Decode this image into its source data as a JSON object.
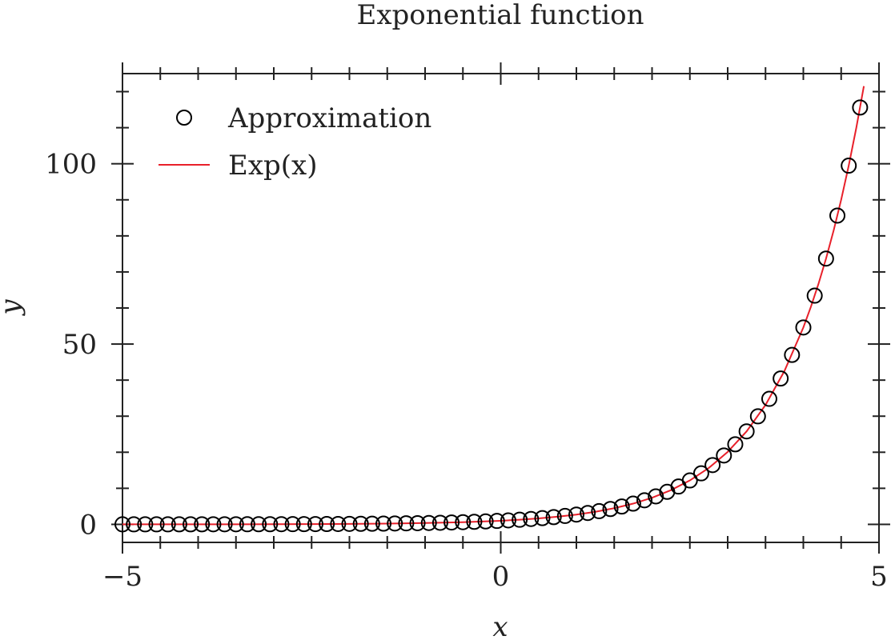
{
  "chart_data": {
    "type": "line",
    "title": "Exponential function",
    "xlabel": "x",
    "ylabel": "y",
    "xlim": [
      -5,
      5
    ],
    "ylim": [
      -5,
      125
    ],
    "xticks": [
      -5,
      0,
      5
    ],
    "xtick_labels": [
      "−5",
      "0",
      "5"
    ],
    "yticks": [
      0,
      50,
      100
    ],
    "ytick_labels": [
      "0",
      "50",
      "100"
    ],
    "grid": false,
    "legend_position": "top-left",
    "series": [
      {
        "name": "Approximation",
        "kind": "markers",
        "marker": "open-circle",
        "color": "#000000",
        "x": [
          -5.0,
          -4.85,
          -4.7,
          -4.55,
          -4.4,
          -4.25,
          -4.1,
          -3.95,
          -3.8,
          -3.65,
          -3.5,
          -3.35,
          -3.2,
          -3.05,
          -2.9,
          -2.75,
          -2.6,
          -2.45,
          -2.3,
          -2.15,
          -2.0,
          -1.85,
          -1.7,
          -1.55,
          -1.4,
          -1.25,
          -1.1,
          -0.95,
          -0.8,
          -0.65,
          -0.5,
          -0.35,
          -0.2,
          -0.05,
          0.1,
          0.25,
          0.4,
          0.55,
          0.7,
          0.85,
          1.0,
          1.15,
          1.3,
          1.45,
          1.6,
          1.75,
          1.9,
          2.05,
          2.2,
          2.35,
          2.5,
          2.65,
          2.8,
          2.95,
          3.1,
          3.25,
          3.4,
          3.55,
          3.7,
          3.85,
          4.0,
          4.15,
          4.3,
          4.45,
          4.6,
          4.75
        ],
        "y": [
          0.007,
          0.008,
          0.009,
          0.011,
          0.012,
          0.014,
          0.017,
          0.019,
          0.022,
          0.026,
          0.03,
          0.035,
          0.041,
          0.047,
          0.055,
          0.064,
          0.074,
          0.086,
          0.1,
          0.116,
          0.135,
          0.157,
          0.183,
          0.212,
          0.247,
          0.287,
          0.333,
          0.387,
          0.449,
          0.522,
          0.607,
          0.705,
          0.819,
          0.951,
          1.105,
          1.284,
          1.492,
          1.733,
          2.014,
          2.34,
          2.718,
          3.158,
          3.669,
          4.263,
          4.953,
          5.755,
          6.686,
          7.768,
          9.025,
          10.49,
          12.18,
          14.15,
          16.44,
          19.11,
          22.2,
          25.79,
          29.96,
          34.81,
          40.45,
          46.99,
          54.6,
          63.43,
          73.7,
          85.63,
          99.48,
          115.6
        ]
      },
      {
        "name": "Exp(x)",
        "kind": "line",
        "color": "#e8202a",
        "x": [
          -5.0,
          -4.5,
          -4.0,
          -3.5,
          -3.0,
          -2.5,
          -2.0,
          -1.5,
          -1.0,
          -0.5,
          0.0,
          0.25,
          0.5,
          0.75,
          1.0,
          1.25,
          1.5,
          1.75,
          2.0,
          2.25,
          2.5,
          2.75,
          3.0,
          3.25,
          3.5,
          3.75,
          4.0,
          4.1,
          4.2,
          4.3,
          4.4,
          4.5,
          4.6,
          4.7,
          4.8
        ],
        "y": [
          0.0067,
          0.0111,
          0.0183,
          0.0302,
          0.0498,
          0.0821,
          0.1353,
          0.2231,
          0.3679,
          0.6065,
          1.0,
          1.284,
          1.6487,
          2.117,
          2.7183,
          3.49,
          4.4817,
          5.755,
          7.3891,
          9.488,
          12.1825,
          15.643,
          20.0855,
          25.79,
          33.1155,
          42.521,
          54.5982,
          60.34,
          66.686,
          73.7,
          81.451,
          90.0171,
          99.484,
          109.947,
          121.51
        ]
      }
    ]
  }
}
